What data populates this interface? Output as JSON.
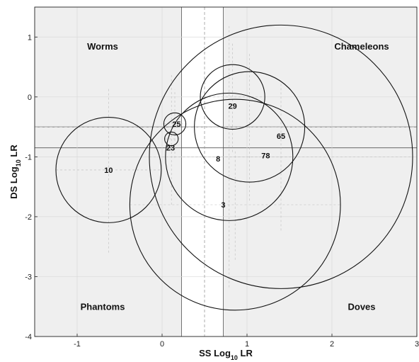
{
  "chart_data": {
    "type": "scatter",
    "title": "",
    "xlabel": {
      "main": "SS Log",
      "sub": "10",
      "tail": " LR"
    },
    "ylabel": {
      "main": "DS Log",
      "sub": "10",
      "tail": " LR"
    },
    "xlim": [
      -1.5,
      3
    ],
    "ylim": [
      1.5,
      -4
    ],
    "y_inverted": true,
    "xticks": [
      -1,
      0,
      1,
      2,
      3
    ],
    "yticks": [
      -4,
      -3,
      -2,
      -1,
      0,
      1
    ],
    "grid": true,
    "white_bands": {
      "x_range": [
        0.23,
        0.72
      ],
      "y_range": [
        -0.85,
        -0.5
      ]
    },
    "dashed_refs": {
      "x": 0.5,
      "y": -0.5
    },
    "regions": [
      {
        "label": "Phantoms",
        "x": -0.7,
        "y": -3.5
      },
      {
        "label": "Doves",
        "x": 2.35,
        "y": -3.5
      },
      {
        "label": "Worms",
        "x": -0.7,
        "y": 0.85
      },
      {
        "label": "Chameleons",
        "x": 2.35,
        "y": 0.85
      }
    ],
    "series": [
      {
        "label": "3",
        "cx": 0.86,
        "cy": -1.8,
        "rx": 1.24,
        "ry": 0.92,
        "label_x": 0.72,
        "label_y": -1.8
      },
      {
        "label": "10",
        "cx": -0.63,
        "cy": -1.22,
        "rx": 0.62,
        "ry": 1.38,
        "label_x": -0.63,
        "label_y": -1.22
      },
      {
        "label": "8",
        "cx": 0.79,
        "cy": -1.0,
        "rx": 0.75,
        "ry": 2.18,
        "label_x": 0.66,
        "label_y": -1.03
      },
      {
        "label": "78",
        "cx": 1.4,
        "cy": -1.0,
        "rx": 1.55,
        "ry": 1.23,
        "label_x": 1.22,
        "label_y": -0.98
      },
      {
        "label": "65",
        "cx": 1.03,
        "cy": -0.5,
        "rx": 0.65,
        "ry": 1.23,
        "label_x": 1.4,
        "label_y": -0.65
      },
      {
        "label": "29",
        "cx": 0.83,
        "cy": 0.0,
        "rx": 0.38,
        "ry": 0.92,
        "label_x": 0.83,
        "label_y": -0.15
      },
      {
        "label": "23",
        "cx": 0.11,
        "cy": -0.7,
        "rx": 0.08,
        "ry": 1.1,
        "label_x": 0.1,
        "label_y": -0.85
      },
      {
        "label": "25",
        "cx": 0.15,
        "cy": -0.45,
        "rx": 0.13,
        "ry": 0.57,
        "label_x": 0.17,
        "label_y": -0.45
      }
    ]
  }
}
